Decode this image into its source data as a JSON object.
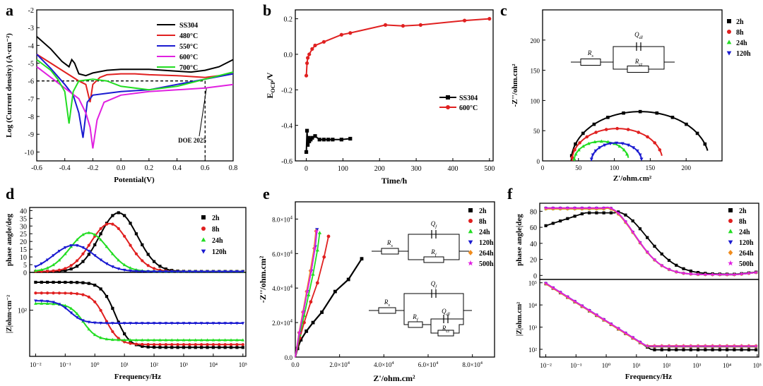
{
  "colors": {
    "black": "#000000",
    "red": "#e02020",
    "blue": "#1a1ad0",
    "magenta": "#e020e0",
    "green": "#22dd22",
    "orange": "#f08c1e"
  },
  "panels": {
    "a": {
      "label": "a",
      "chart_data": {
        "type": "line",
        "xlabel": "Potential(V)",
        "ylabel": "Log (Current density) (A·cm⁻²)",
        "xlim": [
          -0.6,
          0.8
        ],
        "ylim": [
          -10.5,
          -2
        ],
        "xticks": [
          "-0.6",
          "-0.4",
          "-0.2",
          "0.0",
          "0.2",
          "0.4",
          "0.6",
          "0.8"
        ],
        "yticks": [
          "-10",
          "-9",
          "-8",
          "-7",
          "-6",
          "-5",
          "-4",
          "-3",
          "-2"
        ],
        "legend": [
          "SS304",
          "480°C",
          "550°C",
          "600°C",
          "700°C"
        ],
        "legend_position": "top-right",
        "annotation": "DOE 2025",
        "reference": {
          "y": -6,
          "x": 0.6
        },
        "series": [
          {
            "name": "SS304",
            "x": [
              -0.6,
              -0.5,
              -0.42,
              -0.37,
              -0.35,
              -0.33,
              -0.3,
              -0.25,
              -0.2,
              -0.1,
              0.0,
              0.2,
              0.4,
              0.5,
              0.6,
              0.7,
              0.8
            ],
            "y": [
              -3.5,
              -4.2,
              -4.9,
              -5.2,
              -4.8,
              -5.0,
              -5.6,
              -5.7,
              -5.55,
              -5.4,
              -5.35,
              -5.35,
              -5.45,
              -5.5,
              -5.4,
              -5.2,
              -4.8
            ]
          },
          {
            "name": "480°C",
            "x": [
              -0.6,
              -0.5,
              -0.4,
              -0.3,
              -0.25,
              -0.22,
              -0.2,
              -0.15,
              -0.1,
              0.0,
              0.1,
              0.2,
              0.4,
              0.6,
              0.8
            ],
            "y": [
              -4.5,
              -5.0,
              -5.5,
              -6.0,
              -6.2,
              -7.2,
              -6.2,
              -5.8,
              -5.65,
              -5.6,
              -5.6,
              -5.65,
              -5.7,
              -5.8,
              -5.6
            ]
          },
          {
            "name": "550°C",
            "x": [
              -0.6,
              -0.5,
              -0.4,
              -0.34,
              -0.3,
              -0.27,
              -0.24,
              -0.2,
              -0.1,
              0.0,
              0.2,
              0.4,
              0.6,
              0.8
            ],
            "y": [
              -4.5,
              -5.3,
              -6.2,
              -6.8,
              -7.8,
              -9.2,
              -7.2,
              -6.8,
              -6.7,
              -6.6,
              -6.5,
              -6.2,
              -5.9,
              -5.6
            ]
          },
          {
            "name": "600°C",
            "x": [
              -0.6,
              -0.5,
              -0.4,
              -0.3,
              -0.25,
              -0.22,
              -0.2,
              -0.17,
              -0.12,
              0.0,
              0.2,
              0.4,
              0.6,
              0.8
            ],
            "y": [
              -5.2,
              -5.8,
              -6.4,
              -7.0,
              -7.8,
              -8.6,
              -9.8,
              -8.2,
              -7.2,
              -6.8,
              -6.6,
              -6.5,
              -6.4,
              -6.2
            ]
          },
          {
            "name": "700°C",
            "x": [
              -0.6,
              -0.5,
              -0.45,
              -0.4,
              -0.37,
              -0.34,
              -0.3,
              -0.2,
              -0.1,
              0.0,
              0.2,
              0.4,
              0.6,
              0.8
            ],
            "y": [
              -4.8,
              -5.4,
              -5.9,
              -6.6,
              -8.4,
              -6.6,
              -6.0,
              -5.9,
              -6.0,
              -6.3,
              -6.5,
              -6.3,
              -5.9,
              -5.5
            ]
          }
        ]
      }
    },
    "b": {
      "label": "b",
      "chart_data": {
        "type": "line",
        "xlabel": "Time/h",
        "ylabel": "E_OCP/V",
        "xlim": [
          -30,
          510
        ],
        "ylim": [
          -0.6,
          0.25
        ],
        "xticks": [
          "0",
          "100",
          "200",
          "300",
          "400",
          "500"
        ],
        "yticks": [
          "-0.6",
          "-0.4",
          "-0.2",
          "0.0",
          "0.2"
        ],
        "legend": [
          "SS304",
          "600°C"
        ],
        "legend_position": "center-right",
        "series": [
          {
            "name": "SS304",
            "x": [
              0,
              2,
              4,
              6,
              8,
              12,
              16,
              24,
              36,
              48,
              60,
              72,
              96,
              120
            ],
            "y": [
              -0.55,
              -0.43,
              -0.51,
              -0.47,
              -0.49,
              -0.48,
              -0.47,
              -0.46,
              -0.48,
              -0.48,
              -0.48,
              -0.48,
              -0.48,
              -0.475
            ]
          },
          {
            "name": "600°C",
            "x": [
              0,
              2,
              4,
              8,
              16,
              24,
              48,
              96,
              120,
              216,
              264,
              312,
              432,
              500
            ],
            "y": [
              -0.12,
              -0.05,
              -0.02,
              0.0,
              0.03,
              0.05,
              0.07,
              0.11,
              0.12,
              0.165,
              0.16,
              0.165,
              0.19,
              0.2
            ]
          }
        ]
      }
    },
    "c": {
      "label": "c",
      "chart_data": {
        "type": "scatter",
        "xlabel": "Z'/ohm.cm²",
        "ylabel": "-Z''/ohm.cm²",
        "xlim": [
          0,
          250
        ],
        "ylim": [
          0,
          250
        ],
        "xticks": [
          "0",
          "50",
          "100",
          "150",
          "200"
        ],
        "yticks": [
          "0",
          "50",
          "100",
          "150",
          "200"
        ],
        "legend": [
          "2h",
          "8h",
          "24h",
          "120h"
        ],
        "legend_position": "top-right",
        "circuit_labels": {
          "rs": "R",
          "rs_sub": "s",
          "q": "Q",
          "q_sub": "dl",
          "rct": "R",
          "rct_sub": "ct"
        },
        "series": [
          {
            "name": "2h",
            "center": 136,
            "radius": 96,
            "arc_end_deg": 170
          },
          {
            "name": "8h",
            "center": 104,
            "radius": 63,
            "arc_end_deg": 172
          },
          {
            "name": "24h",
            "center": 82,
            "radius": 38,
            "arc_end_deg": 172
          },
          {
            "name": "120h",
            "center": 103,
            "radius": 35,
            "arc_end_deg": 176
          }
        ]
      }
    },
    "d": {
      "label": "d",
      "chart_data": {
        "type": "scatter",
        "xlabel": "Frequency/Hz",
        "top": {
          "ylabel": "phase angle/deg",
          "yticks": [
            "0",
            "5",
            "10",
            "15",
            "20",
            "25",
            "30",
            "35",
            "40"
          ],
          "ylim": [
            0,
            42
          ]
        },
        "bottom": {
          "ylabel": "|Z|ohm·cm⁻²",
          "yticks": [
            "10²"
          ]
        },
        "xticks": [
          "10⁻²",
          "10⁻¹",
          "10⁰",
          "10¹",
          "10²",
          "10³",
          "10⁴",
          "10⁵"
        ],
        "legend": [
          "2h",
          "8h",
          "24h",
          "120h"
        ],
        "legend_position": "top-right",
        "series": [
          {
            "name": "2h",
            "phase_peak": 38,
            "peak_logf": 0.8,
            "width": 0.9,
            "z_low": 215,
            "z_high": 36,
            "corner_logf": 0.5
          },
          {
            "name": "8h",
            "phase_peak": 31,
            "peak_logf": 0.5,
            "width": 0.9,
            "z_low": 160,
            "z_high": 39,
            "corner_logf": 0.2
          },
          {
            "name": "24h",
            "phase_peak": 25,
            "peak_logf": -0.2,
            "width": 0.9,
            "z_low": 120,
            "z_high": 44,
            "corner_logf": -0.5
          },
          {
            "name": "120h",
            "phase_peak": 17,
            "peak_logf": -0.7,
            "width": 1.0,
            "z_low": 130,
            "z_high": 70,
            "corner_logf": -0.9
          }
        ]
      }
    },
    "e": {
      "label": "e",
      "chart_data": {
        "type": "scatter",
        "xlabel": "Z'/ohm.cm²",
        "ylabel": "-Z''/ohm.cm²",
        "xlim": [
          0,
          90000
        ],
        "ylim": [
          0,
          90000
        ],
        "xticks": [
          "0.0",
          "2.0×10⁴",
          "4.0×10⁴",
          "6.0×10⁴",
          "8.0×10⁴"
        ],
        "yticks": [
          "0.0",
          "2.0×10⁴",
          "4.0×10⁴",
          "6.0×10⁴",
          "8.0×10⁴"
        ],
        "legend": [
          "2h",
          "8h",
          "24h",
          "120h",
          "264h",
          "500h"
        ],
        "legend_position": "top-right",
        "circuit1_labels": {
          "rs": "R",
          "rs_sub": "s",
          "q": "Q",
          "q_sub": "f",
          "r": "R",
          "r_sub": "f"
        },
        "circuit2_labels": {
          "rs": "R",
          "rs_sub": "s",
          "q": "Q",
          "q_sub": "f",
          "r": "R",
          "r_sub": "f",
          "qdl": "Q",
          "qdl_sub": "dl",
          "rct": "R",
          "rct_sub": "ct"
        },
        "series": [
          {
            "name": "2h",
            "x": [
              0,
              1000,
              2500,
              5000,
              8000,
              12000,
              18000,
              24000,
              30000
            ],
            "y": [
              0,
              5000,
              10000,
              15000,
              20000,
              26000,
              38000,
              45000,
              57000
            ]
          },
          {
            "name": "8h",
            "x": [
              0,
              2000,
              4000,
              7000,
              10000,
              13000,
              15000
            ],
            "y": [
              0,
              11000,
              20000,
              32000,
              43000,
              58000,
              70000
            ]
          },
          {
            "name": "24h",
            "x": [
              0,
              2000,
              4000,
              6000,
              8000,
              10000,
              11000
            ],
            "y": [
              0,
              13000,
              24000,
              36000,
              48000,
              62000,
              72000
            ]
          },
          {
            "name": "120h",
            "x": [
              0,
              1800,
              3600,
              5400,
              7200,
              9000,
              9800
            ],
            "y": [
              0,
              14000,
              26000,
              38000,
              50000,
              64000,
              74000
            ]
          },
          {
            "name": "264h",
            "x": [
              0,
              1700,
              3400,
              5100,
              6800,
              8500,
              9300
            ],
            "y": [
              0,
              14000,
              26000,
              38000,
              50000,
              63000,
              73000
            ]
          },
          {
            "name": "500h",
            "x": [
              0,
              1800,
              3600,
              5400,
              7200,
              8800,
              9600
            ],
            "y": [
              0,
              14000,
              26000,
              38000,
              50000,
              63000,
              73000
            ]
          }
        ]
      }
    },
    "f": {
      "label": "f",
      "chart_data": {
        "type": "scatter",
        "xlabel": "Frequency/Hz",
        "top": {
          "ylabel": "phase angle|deg",
          "yticks": [
            "0",
            "20",
            "40",
            "60",
            "80"
          ],
          "ylim": [
            -5,
            90
          ]
        },
        "bottom": {
          "ylabel": "|Z|ohm.cm²",
          "yticks": [
            "10²",
            "10³",
            "10⁴",
            "10⁵"
          ]
        },
        "xticks": [
          "10⁻²",
          "10⁻¹",
          "10⁰",
          "10¹",
          "10²",
          "10³",
          "10⁴",
          "10⁵"
        ],
        "legend": [
          "2h",
          "8h",
          "24h",
          "120h",
          "264h",
          "500h"
        ],
        "legend_position": "top-right",
        "series": [
          {
            "name": "2h",
            "phase_start": 62,
            "phase_plateau": 78,
            "z_low": 90000,
            "z_high": 95
          },
          {
            "name": "8h",
            "phase_start": 84,
            "phase_plateau": 84,
            "z_low": 95000,
            "z_high": 130
          },
          {
            "name": "24h",
            "phase_start": 83,
            "phase_plateau": 83,
            "z_low": 92000,
            "z_high": 135
          },
          {
            "name": "120h",
            "phase_start": 84,
            "phase_plateau": 84,
            "z_low": 96000,
            "z_high": 140
          },
          {
            "name": "264h",
            "phase_start": 83,
            "phase_plateau": 83,
            "z_low": 90000,
            "z_high": 145
          },
          {
            "name": "500h",
            "phase_start": 84,
            "phase_plateau": 84,
            "z_low": 95000,
            "z_high": 140
          }
        ]
      }
    }
  }
}
